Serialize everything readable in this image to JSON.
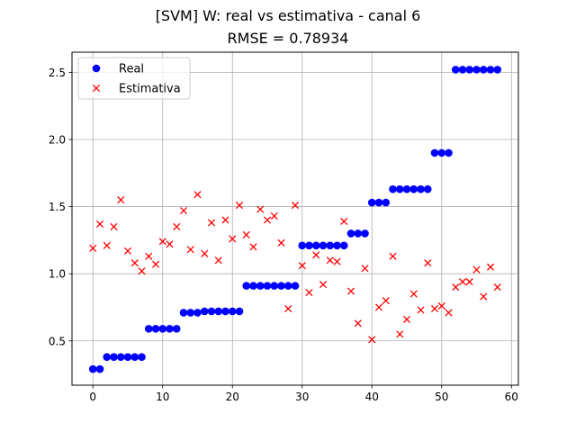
{
  "chart_data": {
    "type": "scatter",
    "title": "[SVM] W: real vs estimativa - canal 6",
    "subtitle": "RMSE = 0.78934",
    "xlabel": "",
    "ylabel": "",
    "xlim": [
      -3,
      61
    ],
    "ylim": [
      0.17,
      2.65
    ],
    "xticks": [
      0,
      10,
      20,
      30,
      40,
      50,
      60
    ],
    "yticks": [
      0.5,
      1.0,
      1.5,
      2.0,
      2.5
    ],
    "xtick_labels": [
      "0",
      "10",
      "20",
      "30",
      "40",
      "50",
      "60"
    ],
    "ytick_labels": [
      "0.5",
      "1.0",
      "1.5",
      "2.0",
      "2.5"
    ],
    "grid": true,
    "legend_position": "upper-left",
    "series": [
      {
        "name": "Real",
        "marker": "circle",
        "color": "#0000ff",
        "x": [
          0,
          1,
          2,
          3,
          4,
          5,
          6,
          7,
          8,
          9,
          10,
          11,
          12,
          13,
          14,
          15,
          16,
          17,
          18,
          19,
          20,
          21,
          22,
          23,
          24,
          25,
          26,
          27,
          28,
          29,
          30,
          31,
          32,
          33,
          34,
          35,
          36,
          37,
          38,
          39,
          40,
          41,
          42,
          43,
          44,
          45,
          46,
          47,
          48,
          49,
          50,
          51,
          52,
          53,
          54,
          55,
          56,
          57,
          58
        ],
        "y": [
          0.29,
          0.29,
          0.38,
          0.38,
          0.38,
          0.38,
          0.38,
          0.38,
          0.59,
          0.59,
          0.59,
          0.59,
          0.59,
          0.71,
          0.71,
          0.71,
          0.72,
          0.72,
          0.72,
          0.72,
          0.72,
          0.72,
          0.91,
          0.91,
          0.91,
          0.91,
          0.91,
          0.91,
          0.91,
          0.91,
          1.21,
          1.21,
          1.21,
          1.21,
          1.21,
          1.21,
          1.21,
          1.3,
          1.3,
          1.3,
          1.53,
          1.53,
          1.53,
          1.63,
          1.63,
          1.63,
          1.63,
          1.63,
          1.63,
          1.9,
          1.9,
          1.9,
          2.52,
          2.52,
          2.52,
          2.52,
          2.52,
          2.52,
          2.52
        ]
      },
      {
        "name": "Estimativa",
        "marker": "x",
        "color": "#ff0000",
        "x": [
          0,
          1,
          2,
          3,
          4,
          5,
          6,
          7,
          8,
          9,
          10,
          11,
          12,
          13,
          14,
          15,
          16,
          17,
          18,
          19,
          20,
          21,
          22,
          23,
          24,
          25,
          26,
          27,
          28,
          29,
          30,
          31,
          32,
          33,
          34,
          35,
          36,
          37,
          38,
          39,
          40,
          41,
          42,
          43,
          44,
          45,
          46,
          47,
          48,
          49,
          50,
          51,
          52,
          53,
          54,
          55,
          56,
          57,
          58
        ],
        "y": [
          1.19,
          1.37,
          1.21,
          1.35,
          1.55,
          1.17,
          1.08,
          1.02,
          1.13,
          1.07,
          1.24,
          1.22,
          1.35,
          1.47,
          1.18,
          1.59,
          1.15,
          1.38,
          1.1,
          1.4,
          1.26,
          1.51,
          1.29,
          1.2,
          1.48,
          1.4,
          1.43,
          1.23,
          0.74,
          1.51,
          1.06,
          0.86,
          1.14,
          0.92,
          1.1,
          1.09,
          1.39,
          0.87,
          0.63,
          1.04,
          0.51,
          0.75,
          0.8,
          1.13,
          0.55,
          0.66,
          0.85,
          0.73,
          1.08,
          0.74,
          0.76,
          0.71,
          0.9,
          0.94,
          0.94,
          1.03,
          0.83,
          1.05,
          0.9
        ]
      }
    ]
  }
}
